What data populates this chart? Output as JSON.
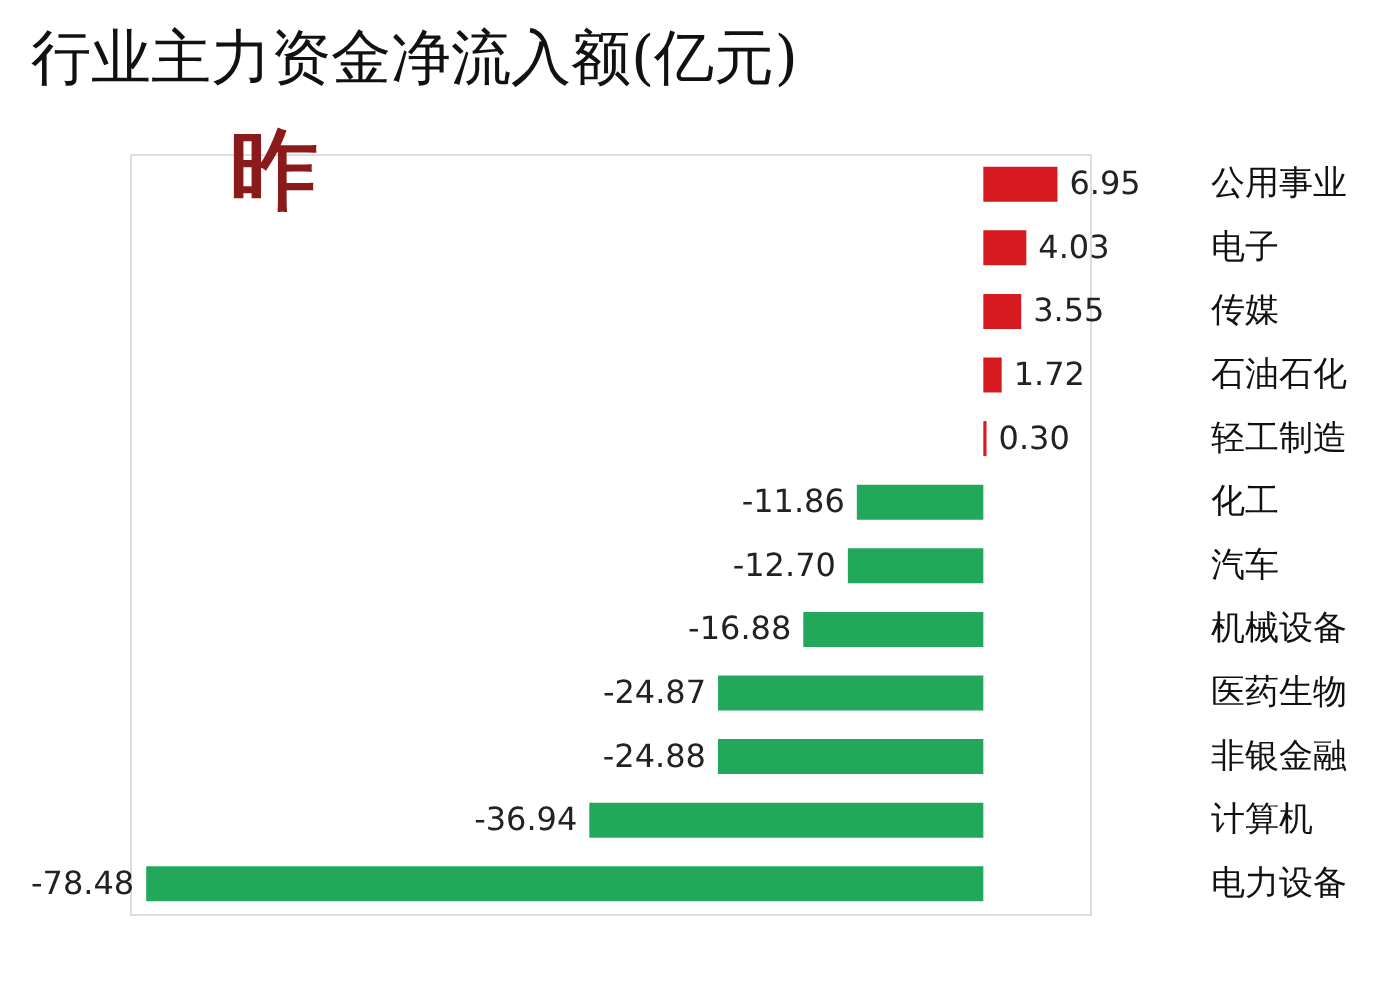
{
  "chart_data": {
    "type": "bar",
    "orientation": "horizontal",
    "title": "行业主力资金净流入额(亿元)",
    "annotations": [
      "昨"
    ],
    "categories": [
      "公用事业",
      "电子",
      "传媒",
      "石油石化",
      "轻工制造",
      "化工",
      "汽车",
      "机械设备",
      "医药生物",
      "非银金融",
      "计算机",
      "电力设备"
    ],
    "values": [
      6.95,
      4.03,
      3.55,
      1.72,
      0.3,
      -11.86,
      -12.7,
      -16.88,
      -24.87,
      -24.88,
      -36.94,
      -78.48
    ],
    "colors": [
      "#d71920",
      "#d71920",
      "#d71920",
      "#d71920",
      "#d71920",
      "#22a85a",
      "#22a85a",
      "#22a85a",
      "#22a85a",
      "#22a85a",
      "#22a85a",
      "#22a85a"
    ],
    "value_labels": [
      "6.95",
      "4.03",
      "3.55",
      "1.72",
      "0.30",
      "-11.86",
      "-12.70",
      "-16.88",
      "-24.87",
      "-24.88",
      "-36.94",
      "-78.48"
    ],
    "grid": false
  }
}
